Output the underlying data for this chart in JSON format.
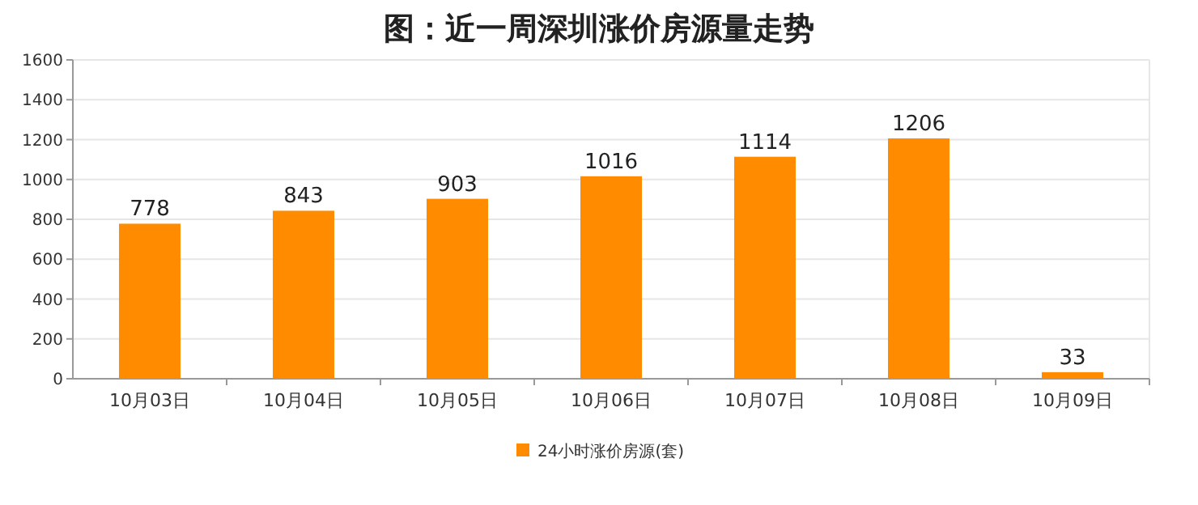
{
  "chart_data": {
    "type": "bar",
    "title": "图：近一周深圳涨价房源量走势",
    "categories": [
      "10月03日",
      "10月04日",
      "10月05日",
      "10月06日",
      "10月07日",
      "10月08日",
      "10月09日"
    ],
    "series": [
      {
        "name": "24小时涨价房源(套)",
        "color": "#ff8c00",
        "values": [
          778,
          843,
          903,
          1016,
          1114,
          1206,
          33
        ]
      }
    ],
    "ylim": [
      0,
      1600
    ],
    "yticks": [
      0,
      200,
      400,
      600,
      800,
      1000,
      1200,
      1400,
      1600
    ],
    "grid": "y",
    "legend": "bottom",
    "data_labels": true
  }
}
